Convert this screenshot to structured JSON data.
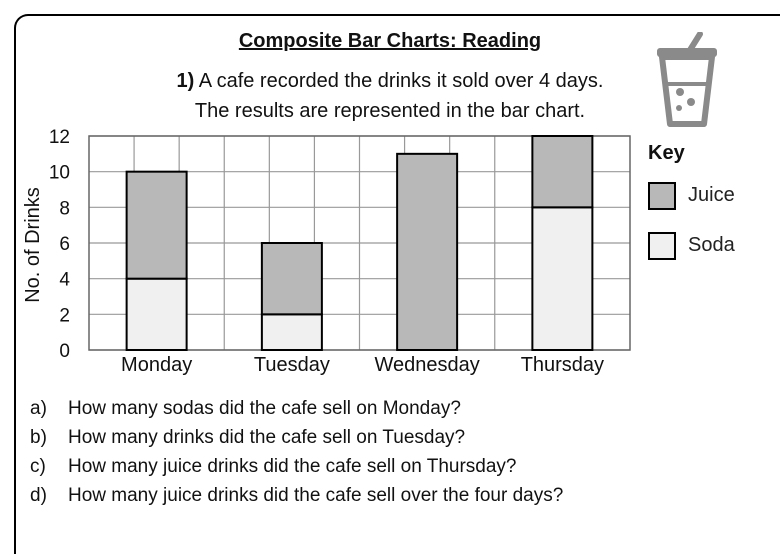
{
  "worksheet": {
    "title": "Composite Bar Charts: Reading",
    "question_number": "1)",
    "intro_line1": "A cafe recorded the drinks it sold over 4 days.",
    "intro_line2": "The results are represented in the bar chart.",
    "icon": "drink-cup-icon"
  },
  "key": {
    "title": "Key",
    "items": [
      {
        "label": "Juice",
        "color": "#b8b8b8"
      },
      {
        "label": "Soda",
        "color": "#f0f0f0"
      }
    ]
  },
  "chart_data": {
    "type": "bar",
    "stacked": true,
    "categories": [
      "Monday",
      "Tuesday",
      "Wednesday",
      "Thursday"
    ],
    "series": [
      {
        "name": "Soda",
        "values": [
          4,
          2,
          0,
          8
        ],
        "color": "#f0f0f0"
      },
      {
        "name": "Juice",
        "values": [
          6,
          4,
          11,
          4
        ],
        "color": "#b8b8b8"
      }
    ],
    "title": "",
    "xlabel": "",
    "ylabel": "No. of Drinks",
    "ylim": [
      0,
      12
    ],
    "yticks": [
      0,
      2,
      4,
      6,
      8,
      10,
      12
    ],
    "grid": true,
    "legend": "right"
  },
  "questions": [
    {
      "letter": "a)",
      "text": "How many sodas did the cafe sell on Monday?"
    },
    {
      "letter": "b)",
      "text": "How many drinks did the cafe sell on Tuesday?"
    },
    {
      "letter": "c)",
      "text": "How many juice drinks did the cafe sell on Thursday?"
    },
    {
      "letter": "d)",
      "text": "How many juice drinks did the cafe sell over the four days?"
    }
  ]
}
